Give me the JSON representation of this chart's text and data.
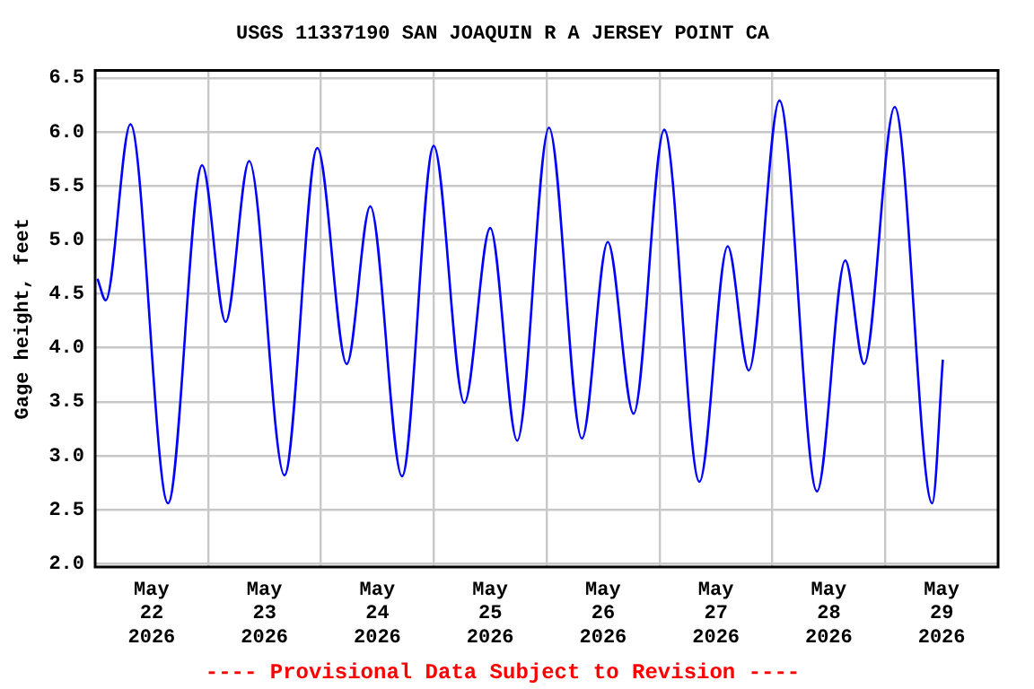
{
  "chart_data": {
    "type": "line",
    "title": "USGS 11337190 SAN JOAQUIN R A JERSEY POINT CA",
    "ylabel": "Gage height, feet",
    "annotations": [
      "---- Provisional Data Subject to Revision ----"
    ],
    "x": [
      "2026-05-22T00:30",
      "2026-05-22T02:15",
      "2026-05-22T07:30",
      "2026-05-22T15:30",
      "2026-05-22T22:45",
      "2026-05-23T03:45",
      "2026-05-23T08:45",
      "2026-05-23T16:15",
      "2026-05-23T23:15",
      "2026-05-24T05:30",
      "2026-05-24T10:30",
      "2026-05-24T17:15",
      "2026-05-25T00:00",
      "2026-05-25T06:30",
      "2026-05-25T12:00",
      "2026-05-25T17:45",
      "2026-05-26T00:30",
      "2026-05-26T07:30",
      "2026-05-26T13:00",
      "2026-05-26T18:30",
      "2026-05-27T01:00",
      "2026-05-27T08:30",
      "2026-05-27T14:30",
      "2026-05-27T19:00",
      "2026-05-28T01:30",
      "2026-05-28T09:30",
      "2026-05-28T15:30",
      "2026-05-28T19:30",
      "2026-05-29T02:00",
      "2026-05-29T10:00",
      "2026-05-29T12:15"
    ],
    "series": [
      {
        "color": "#0000ff",
        "values": [
          4.64,
          4.44,
          6.07,
          2.56,
          5.69,
          4.24,
          5.73,
          2.82,
          5.85,
          3.85,
          5.31,
          2.81,
          5.87,
          3.49,
          5.11,
          3.14,
          6.04,
          3.16,
          4.98,
          3.39,
          6.02,
          2.76,
          4.94,
          3.79,
          6.29,
          2.67,
          4.81,
          3.85,
          6.23,
          2.56,
          3.89
        ]
      }
    ],
    "xlim": [
      "2026-05-22T00:00",
      "2026-05-30T00:00"
    ],
    "xticks": [
      {
        "value": "2026-05-22T12:00",
        "label": "May 22 2026"
      },
      {
        "value": "2026-05-23T00:00",
        "label": null
      },
      {
        "value": "2026-05-23T12:00",
        "label": "May 23 2026"
      },
      {
        "value": "2026-05-24T00:00",
        "label": null
      },
      {
        "value": "2026-05-24T12:00",
        "label": "May 24 2026"
      },
      {
        "value": "2026-05-25T00:00",
        "label": null
      },
      {
        "value": "2026-05-25T12:00",
        "label": "May 25 2026"
      },
      {
        "value": "2026-05-26T00:00",
        "label": null
      },
      {
        "value": "2026-05-26T12:00",
        "label": "May 26 2026"
      },
      {
        "value": "2026-05-27T00:00",
        "label": null
      },
      {
        "value": "2026-05-27T12:00",
        "label": "May 27 2026"
      },
      {
        "value": "2026-05-28T00:00",
        "label": null
      },
      {
        "value": "2026-05-28T12:00",
        "label": "May 28 2026"
      },
      {
        "value": "2026-05-29T00:00",
        "label": null
      },
      {
        "value": "2026-05-29T12:00",
        "label": "May 29 2026"
      }
    ],
    "ylim": [
      1.97,
      6.57
    ],
    "yticks": [
      {
        "value": 2,
        "label": "2.0"
      },
      {
        "value": 2.5,
        "label": "2.5"
      },
      {
        "value": 3,
        "label": "3.0"
      },
      {
        "value": 3.5,
        "label": "3.5"
      },
      {
        "value": 4,
        "label": "4.0"
      },
      {
        "value": 4.5,
        "label": "4.5"
      },
      {
        "value": 5,
        "label": "5.0"
      },
      {
        "value": 5.5,
        "label": "5.5"
      },
      {
        "value": 6,
        "label": "6.0"
      },
      {
        "value": 6.5,
        "label": "6.5"
      }
    ],
    "grid": true,
    "legend": false,
    "marker": "none",
    "line_style": "solid"
  }
}
